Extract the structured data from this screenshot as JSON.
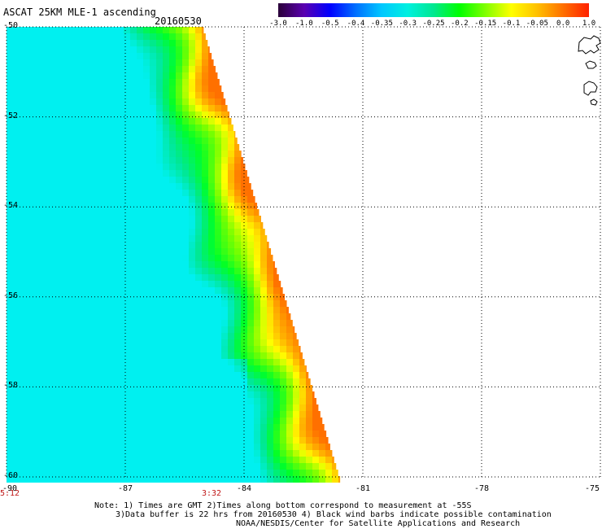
{
  "header": {
    "title": "ASCAT 25KM MLE-1 ascending",
    "date": "20160530"
  },
  "colorbar": {
    "labels": [
      "-3.0",
      "-1.0",
      "-0.5",
      "-0.4",
      "-0.35",
      "-0.3",
      "-0.25",
      "-0.2",
      "-0.15",
      "-0.1",
      "-0.05",
      "0.0",
      "1.0"
    ],
    "colors": [
      "#2a0038",
      "#5a00b0",
      "#0000ff",
      "#0070ff",
      "#00c8ff",
      "#00f0e0",
      "#00e890",
      "#00ff00",
      "#80ff00",
      "#ffff00",
      "#ffc000",
      "#ff7000",
      "#ff2000"
    ]
  },
  "map": {
    "lat_labels": [
      "-50",
      "-52",
      "-54",
      "-56",
      "-58",
      "-60"
    ],
    "lon_labels": [
      "-90",
      "-87",
      "-84",
      "-81",
      "-78",
      "-75"
    ],
    "time_labels": [
      "5:12",
      "3:32"
    ]
  },
  "notes": {
    "line1": "Note: 1) Times are GMT 2)Times along bottom correspond to measurement at -55S",
    "line2": "3)Data buffer is 22 hrs from 20160530 4) Black wind barbs indicate possible contamination",
    "line3": "NOAA/NESDIS/Center for Satellite Applications and Research"
  }
}
